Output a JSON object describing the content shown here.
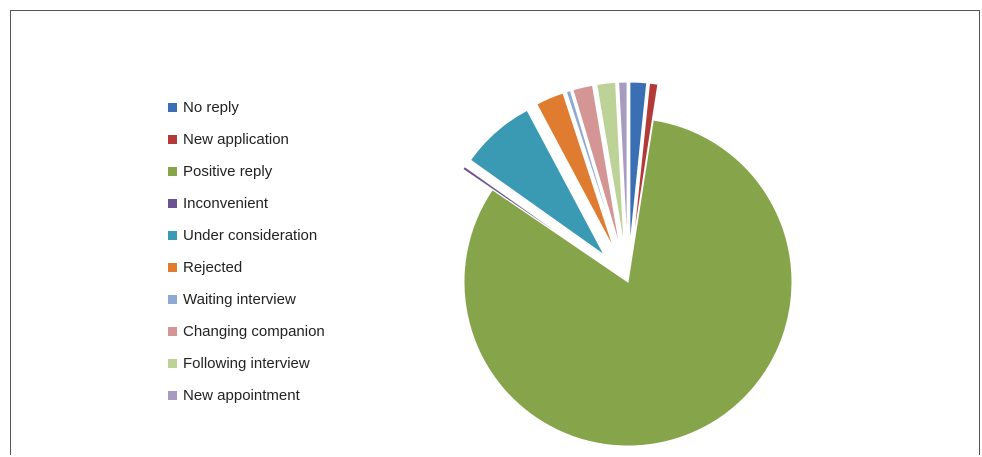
{
  "chart_data": {
    "type": "pie",
    "title": "",
    "legend_position": "left",
    "exploded": true,
    "slices": [
      {
        "label": "No reply",
        "value": 1.6,
        "color": "#3b6fb3"
      },
      {
        "label": "New application",
        "value": 0.8,
        "color": "#b23b38"
      },
      {
        "label": "Positive reply",
        "value": 80.0,
        "color": "#86a44a"
      },
      {
        "label": "Inconvenient",
        "value": 0.3,
        "color": "#6b5391"
      },
      {
        "label": "Under consideration",
        "value": 7.2,
        "color": "#3a9ab3"
      },
      {
        "label": "Rejected",
        "value": 2.7,
        "color": "#e07c30"
      },
      {
        "label": "Waiting interview",
        "value": 0.4,
        "color": "#8eaad3"
      },
      {
        "label": "Changing companion",
        "value": 1.9,
        "color": "#d49694"
      },
      {
        "label": "Following interview",
        "value": 1.8,
        "color": "#bcd297"
      },
      {
        "label": "New appointment",
        "value": 0.8,
        "color": "#a79bbf"
      }
    ]
  }
}
